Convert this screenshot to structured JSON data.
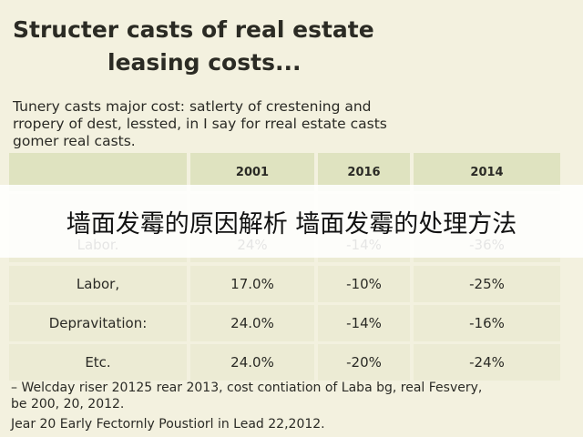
{
  "document": {
    "title": [
      "Structer casts of real estate",
      "leasing costs..."
    ],
    "intro": [
      "Tunery casts major cost: satlerty of crestening and",
      "rropery of dest, lessted, in I say for rreal estate casts",
      "gomer real casts."
    ],
    "table": {
      "header": [
        "2001",
        "2016",
        "2014"
      ],
      "rows": [
        [
          "Labor.",
          "24%",
          "-14%",
          "-36%"
        ],
        [
          "Labor,",
          "17.0%",
          "-10%",
          "-25%"
        ],
        [
          "Depravitation:",
          "24.0%",
          "-14%",
          "-16%"
        ],
        [
          "Etc.",
          "24.0%",
          "-20%",
          "-24%"
        ]
      ]
    },
    "notes": [
      "– Welcday riser 20125 rear 2013, cost contiation of Laba bg, real Fesvery,",
      "be 200, 20, 2012.",
      "Jear 20 Early Fectornly Poustiorl in Lead 22,2012."
    ],
    "banner": "墙面发霉的原因解析 墙面发霉的处理方法"
  }
}
